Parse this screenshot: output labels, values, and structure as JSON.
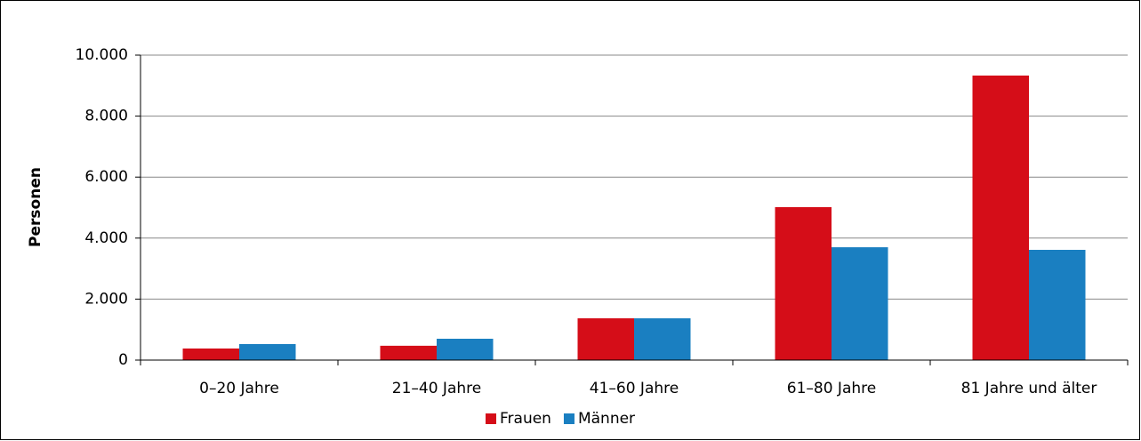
{
  "chart_data": {
    "type": "bar",
    "y_label": "Personen",
    "categories": [
      "0–20 Jahre",
      "21–40 Jahre",
      "41–60 Jahre",
      "61–80 Jahre",
      "81 Jahre und älter"
    ],
    "series": [
      {
        "name": "Frauen",
        "color": "#d50d18",
        "values": [
          380,
          470,
          1370,
          5015,
          9330
        ]
      },
      {
        "name": "Männer",
        "color": "#1a7fc1",
        "values": [
          525,
          700,
          1370,
          3700,
          3615
        ]
      }
    ],
    "ylim": [
      0,
      10000
    ],
    "yticks": [
      0,
      {
        "value": 2000,
        "label": "2.000"
      },
      {
        "value": 4000,
        "label": "4.000"
      },
      {
        "value": 6000,
        "label": "6.000"
      },
      {
        "value": 8000,
        "label": "8.000"
      },
      {
        "value": 10000,
        "label": "10.000"
      }
    ],
    "grid": true,
    "legend": "bottom"
  }
}
